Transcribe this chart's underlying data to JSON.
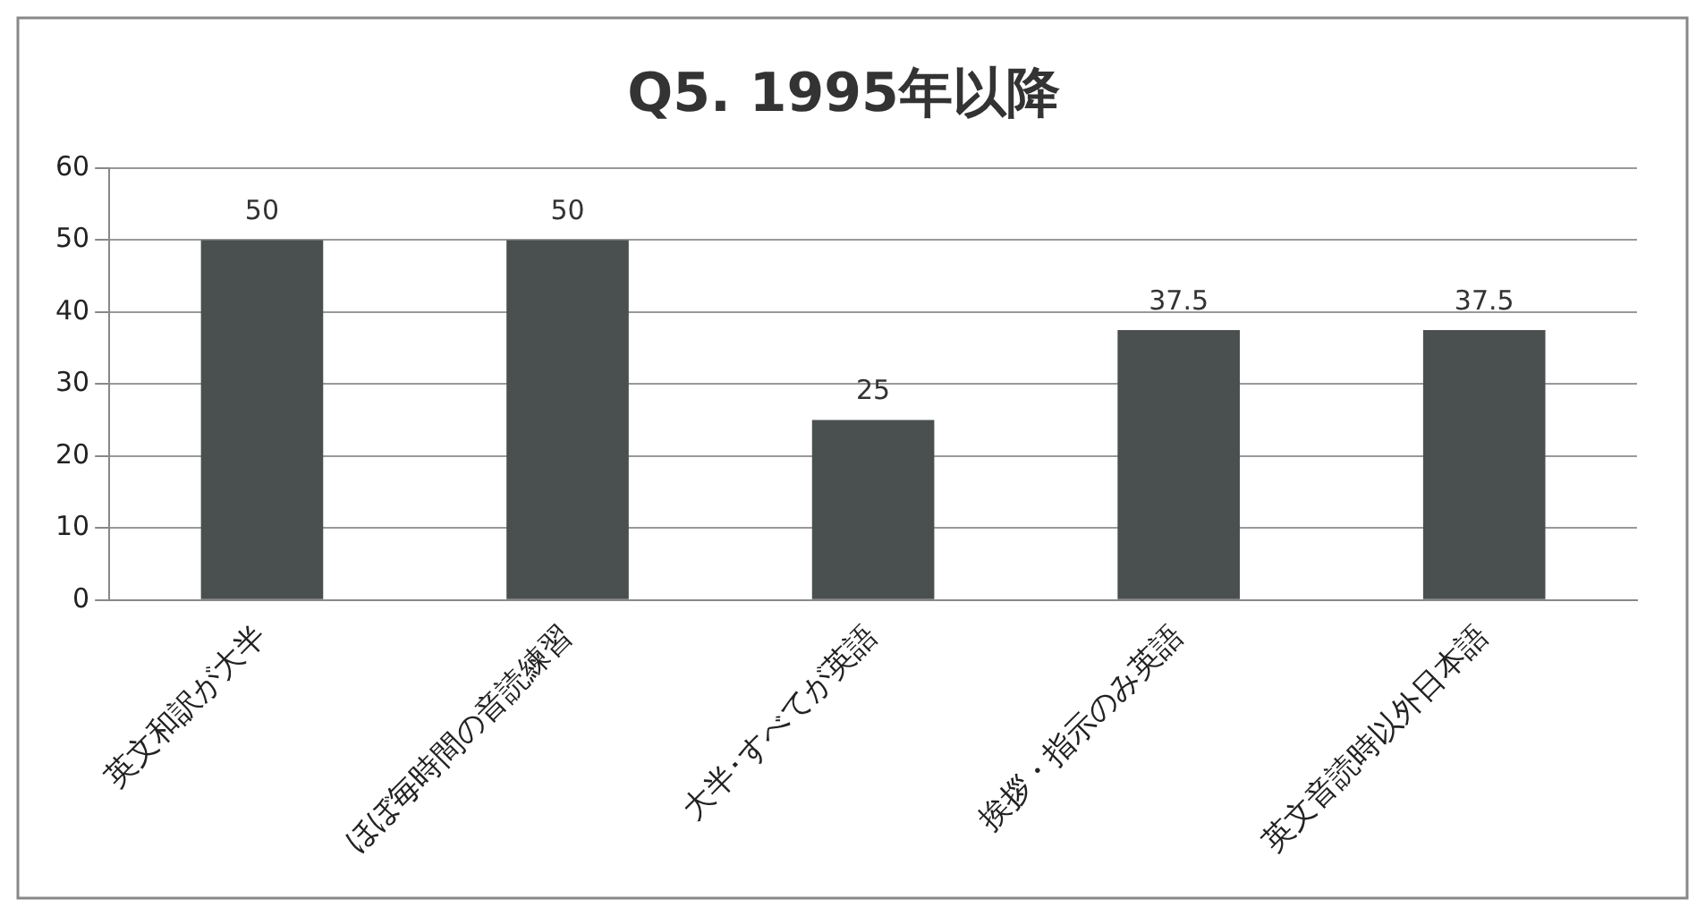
{
  "chart_data": {
    "type": "bar",
    "title": "Q5. 1995年以降",
    "categories": [
      "英文和訳が大半",
      "ほぼ毎時間の音読練習",
      "大半･すべてが英語",
      "挨拶・指示のみ英語",
      "英文音読時以外日本語"
    ],
    "values": [
      50,
      50,
      25,
      37.5,
      37.5
    ],
    "color": "#4a4f4f",
    "ylim": [
      0,
      60
    ],
    "yticks": [
      0,
      10,
      20,
      30,
      40,
      50,
      60
    ],
    "grid": "y",
    "legend": false,
    "data_labels": true
  }
}
